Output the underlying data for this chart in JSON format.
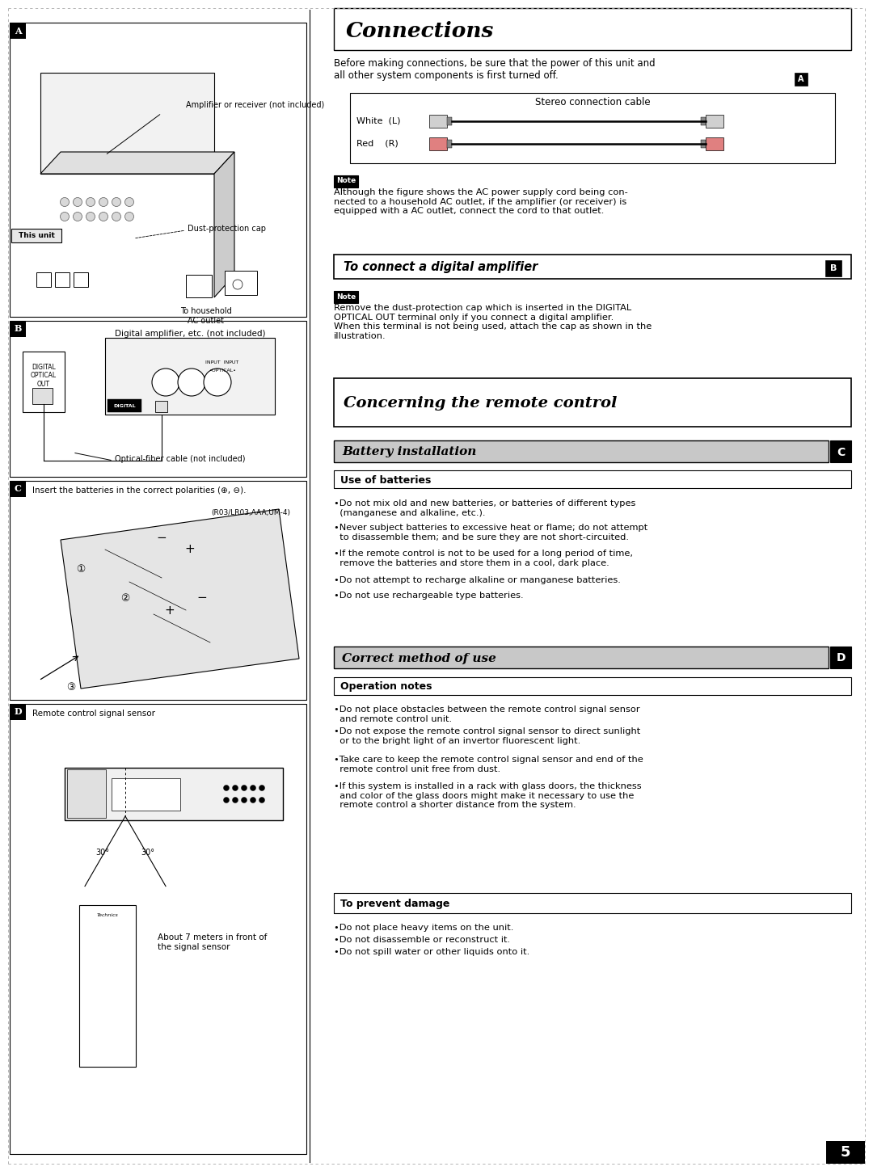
{
  "page_bg": "#ffffff",
  "title_connections": "Connections",
  "title_remote": "Concerning the remote control",
  "connections_intro": "Before making connections, be sure that the power of this unit and\nall other system components is first turned off.",
  "stereo_cable_title": "Stereo connection cable",
  "stereo_white": "White  (L)",
  "stereo_red": "Red    (R)",
  "note_label": "Note",
  "note1_text": "Although the figure shows the AC power supply cord being con-\nnected to a household AC outlet, if the amplifier (or receiver) is\nequipped with a AC outlet, connect the cord to that outlet.",
  "digital_amp_header": "To connect a digital amplifier",
  "note2_text": "Remove the dust-protection cap which is inserted in the DIGITAL\nOPTICAL OUT terminal only if you connect a digital amplifier.\nWhen this terminal is not being used, attach the cap as shown in the\nillustration.",
  "battery_install_header": "Battery installation",
  "use_batteries_header": "Use of batteries",
  "battery_bullets": [
    "•Do not mix old and new batteries, or batteries of different types\n  (manganese and alkaline, etc.).",
    "•Never subject batteries to excessive heat or flame; do not attempt\n  to disassemble them; and be sure they are not short-circuited.",
    "•If the remote control is not to be used for a long period of time,\n  remove the batteries and store them in a cool, dark place.",
    "•Do not attempt to recharge alkaline or manganese batteries.",
    "•Do not use rechargeable type batteries."
  ],
  "correct_method_header": "Correct method of use",
  "operation_notes_header": "Operation notes",
  "operation_bullets": [
    "•Do not place obstacles between the remote control signal sensor\n  and remote control unit.",
    "•Do not expose the remote control signal sensor to direct sunlight\n  or to the bright light of an invertor fluorescent light.",
    "•Take care to keep the remote control signal sensor and end of the\n  remote control unit free from dust.",
    "•If this system is installed in a rack with glass doors, the thickness\n  and color of the glass doors might make it necessary to use the\n  remote control a shorter distance from the system."
  ],
  "prevent_damage_header": "To prevent damage",
  "prevent_damage_bullets": [
    "•Do not place heavy items on the unit.",
    "•Do not disassemble or reconstruct it.",
    "•Do not spill water or other liquids onto it."
  ],
  "amp_label": "Amplifier or receiver (not included)",
  "dust_cap_label": "Dust-protection cap",
  "this_unit_label": "This unit",
  "ac_outlet_label": "To household\nAC outlet",
  "digital_amp_label": "Digital amplifier, etc. (not included)",
  "optical_label": "DIGITAL\nOPTICAL\nOUT",
  "optical_cable_label": "Optical-fiber cable (not included)",
  "battery_polarity_label": "Insert the batteries in the correct polarities (⊕, ⊖).",
  "battery_type_label": "(R03/LR03,AAA,UM-4)",
  "remote_sensor_label": "Remote control signal sensor",
  "distance_label": "About 7 meters in front of\nthe signal sensor",
  "angle_label_left": "30°",
  "angle_label_right": "30°",
  "page_number": "5"
}
